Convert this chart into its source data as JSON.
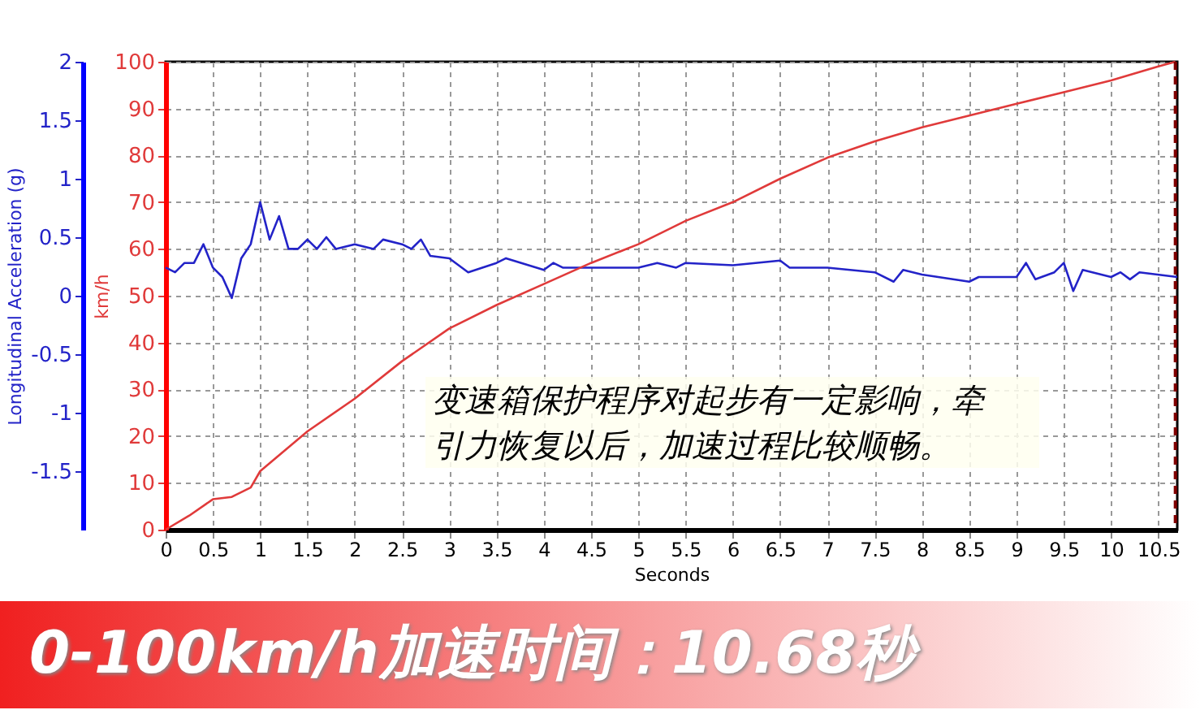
{
  "chart_data": {
    "type": "line",
    "xlabel": "Seconds",
    "ylabel": "Longitudinal Acceleration (g)",
    "y2label": "km/h",
    "xlim": [
      0,
      10.7
    ],
    "xticks": [
      0,
      0.5,
      1,
      1.5,
      2,
      2.5,
      3,
      3.5,
      4,
      4.5,
      5,
      5.5,
      6,
      6.5,
      7,
      7.5,
      8,
      8.5,
      9,
      9.5,
      10,
      10.5
    ],
    "ylim": [
      -2,
      2
    ],
    "yticks": [
      -1.5,
      -1,
      -0.5,
      0,
      0.5,
      1,
      1.5,
      2
    ],
    "y2lim": [
      0,
      100
    ],
    "y2ticks": [
      0,
      10,
      20,
      30,
      40,
      50,
      60,
      70,
      80,
      90,
      100
    ],
    "grid": true,
    "marker": "none",
    "line_style": "solid",
    "series": [
      {
        "color": "#2323c8",
        "x": [
          0,
          0.1,
          0.2,
          0.3,
          0.4,
          0.5,
          0.6,
          0.7,
          0.8,
          0.9,
          1.0,
          1.1,
          1.2,
          1.3,
          1.4,
          1.5,
          1.6,
          1.7,
          1.8,
          2.0,
          2.2,
          2.3,
          2.5,
          2.6,
          2.7,
          2.8,
          3.0,
          3.2,
          3.5,
          3.6,
          4.0,
          4.1,
          4.2,
          4.5,
          5.0,
          5.2,
          5.4,
          5.5,
          6.0,
          6.5,
          6.6,
          7.0,
          7.5,
          7.7,
          7.8,
          8.0,
          8.5,
          8.6,
          9.0,
          9.1,
          9.2,
          9.4,
          9.5,
          9.6,
          9.7,
          10.0,
          10.1,
          10.2,
          10.3,
          10.7
        ],
        "values": [
          0.24,
          0.2,
          0.28,
          0.28,
          0.44,
          0.24,
          0.16,
          -0.02,
          0.32,
          0.44,
          0.8,
          0.48,
          0.68,
          0.4,
          0.4,
          0.48,
          0.4,
          0.5,
          0.4,
          0.44,
          0.4,
          0.48,
          0.44,
          0.4,
          0.48,
          0.34,
          0.32,
          0.2,
          0.28,
          0.32,
          0.22,
          0.28,
          0.24,
          0.24,
          0.24,
          0.28,
          0.24,
          0.28,
          0.26,
          0.3,
          0.24,
          0.24,
          0.2,
          0.12,
          0.22,
          0.18,
          0.12,
          0.16,
          0.16,
          0.28,
          0.14,
          0.2,
          0.28,
          0.04,
          0.22,
          0.16,
          0.2,
          0.14,
          0.2,
          0.16
        ]
      },
      {
        "color": "#e03a3a",
        "axis": "y2",
        "x": [
          0,
          0.25,
          0.5,
          0.7,
          0.9,
          1.0,
          1.5,
          2.0,
          2.5,
          3.0,
          3.5,
          4.0,
          4.5,
          5.0,
          5.5,
          6.0,
          6.5,
          7.0,
          7.5,
          8.0,
          8.5,
          9.0,
          9.5,
          10.0,
          10.5,
          10.68
        ],
        "values": [
          0,
          3,
          6.5,
          7,
          9,
          12.5,
          21,
          28,
          36,
          43,
          48,
          52.5,
          57,
          61,
          66,
          70,
          75,
          79.5,
          83,
          86,
          88.5,
          91,
          93.5,
          96,
          99,
          100
        ]
      }
    ],
    "ref_lines": [
      {
        "axis": "x",
        "value": 10.68,
        "color": "#800000",
        "line_style": "dashed"
      }
    ],
    "annotations": [
      "变速箱保护程序对起步有一定影响，牵引力恢复以后，加速过程比较顺畅。",
      "0-100km/h加速时间：10.68秒"
    ]
  }
}
